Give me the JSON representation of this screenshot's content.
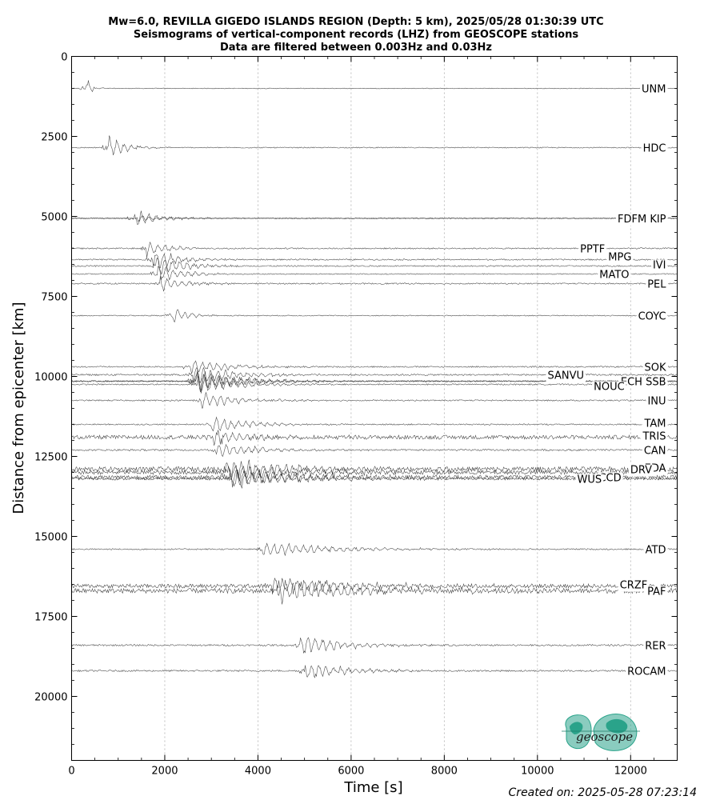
{
  "chart_data": {
    "type": "line",
    "title_lines": [
      "Mw=6.0, REVILLA GIGEDO ISLANDS REGION (Depth: 5 km), 2025/05/28 01:30:39 UTC",
      "Seismograms of vertical-component records (LHZ) from GEOSCOPE stations",
      "Data are filtered between 0.003Hz and 0.03Hz"
    ],
    "xlabel": "Time [s]",
    "ylabel": "Distance from epicenter [km]",
    "xlim": [
      0,
      13000
    ],
    "ylim": [
      22000,
      0
    ],
    "x_ticks": [
      0,
      2000,
      4000,
      6000,
      8000,
      10000,
      12000
    ],
    "y_ticks": [
      0,
      2500,
      5000,
      7500,
      10000,
      12500,
      15000,
      17500,
      20000
    ],
    "x_grid": true,
    "y_grid": false,
    "series": [
      {
        "name": "UNM",
        "distance": 1000,
        "arrival": 320,
        "amp": 14,
        "noise": 0.4,
        "coda": 200,
        "spread": 0
      },
      {
        "name": "HDC",
        "distance": 2850,
        "arrival": 800,
        "amp": 14,
        "noise": 0.6,
        "coda": 700,
        "spread": 0
      },
      {
        "name": "FDFM",
        "distance": 5060,
        "arrival": 1350,
        "amp": 12,
        "noise": 0.6,
        "coda": 900,
        "spread": 0
      },
      {
        "name": "KIP",
        "distance": 5060,
        "arrival": 1400,
        "amp": 5,
        "noise": 0.3,
        "coda": 600,
        "spread": 0
      },
      {
        "name": "PPTF",
        "distance": 6000,
        "arrival": 1600,
        "amp": 10,
        "noise": 0.8,
        "coda": 800,
        "spread": 0
      },
      {
        "name": "MPG",
        "distance": 6350,
        "arrival": 1750,
        "amp": 14,
        "noise": 0.8,
        "coda": 900,
        "spread": 0
      },
      {
        "name": "IVI",
        "distance": 6550,
        "arrival": 1800,
        "amp": 14,
        "noise": 0.8,
        "coda": 1000,
        "spread": 0
      },
      {
        "name": "MATO",
        "distance": 6800,
        "arrival": 1850,
        "amp": 12,
        "noise": 0.6,
        "coda": 900,
        "spread": 0
      },
      {
        "name": "PEL",
        "distance": 7100,
        "arrival": 1900,
        "amp": 10,
        "noise": 0.8,
        "coda": 900,
        "spread": 0
      },
      {
        "name": "COYC",
        "distance": 8100,
        "arrival": 2150,
        "amp": 10,
        "noise": 0.6,
        "coda": 600,
        "spread": 0
      },
      {
        "name": "SOK",
        "distance": 9700,
        "arrival": 2550,
        "amp": 10,
        "noise": 0.8,
        "coda": 1400,
        "spread": 0
      },
      {
        "name": "SANVU",
        "distance": 9950,
        "arrival": 2600,
        "amp": 12,
        "noise": 1.0,
        "coda": 1500,
        "spread": 0
      },
      {
        "name": "ECH",
        "distance": 10150,
        "arrival": 2650,
        "amp": 14,
        "noise": 0.8,
        "coda": 1600,
        "spread": 0
      },
      {
        "name": "SSB",
        "distance": 10150,
        "arrival": 2650,
        "amp": 14,
        "noise": 0.8,
        "coda": 1600,
        "spread": 0
      },
      {
        "name": "NOUC",
        "distance": 10250,
        "arrival": 2700,
        "amp": 12,
        "noise": 0.8,
        "coda": 1500,
        "spread": 0
      },
      {
        "name": "INU",
        "distance": 10750,
        "arrival": 2750,
        "amp": 10,
        "noise": 0.8,
        "coda": 1300,
        "spread": 0
      },
      {
        "name": "TAM",
        "distance": 11500,
        "arrival": 3000,
        "amp": 10,
        "noise": 0.8,
        "coda": 1400,
        "spread": 0
      },
      {
        "name": "TRIS",
        "distance": 11900,
        "arrival": 3050,
        "amp": 10,
        "noise": 2.5,
        "coda": 1500,
        "spread": 0
      },
      {
        "name": "CAN",
        "distance": 12300,
        "arrival": 3100,
        "amp": 10,
        "noise": 1.0,
        "coda": 1500,
        "spread": 0
      },
      {
        "name": "EDA",
        "distance": 12900,
        "arrival": 3300,
        "amp": 12,
        "noise": 3.0,
        "coda": 2500,
        "spread": 0
      },
      {
        "name": "DRV",
        "distance": 13000,
        "arrival": 3350,
        "amp": 12,
        "noise": 2.5,
        "coda": 2500,
        "spread": 0
      },
      {
        "name": "CCD",
        "distance": 13150,
        "arrival": 3400,
        "amp": 12,
        "noise": 2.5,
        "coda": 2500,
        "spread": 0
      },
      {
        "name": "WUS",
        "distance": 13200,
        "arrival": 3450,
        "amp": 12,
        "noise": 1.5,
        "coda": 2300,
        "spread": 0
      },
      {
        "name": "ATD",
        "distance": 15400,
        "arrival": 4100,
        "amp": 10,
        "noise": 0.8,
        "coda": 2500,
        "spread": 0
      },
      {
        "name": "CRZF",
        "distance": 16550,
        "arrival": 4300,
        "amp": 12,
        "noise": 2.5,
        "coda": 2800,
        "spread": 0
      },
      {
        "name": "PAF",
        "distance": 16700,
        "arrival": 4400,
        "amp": 14,
        "noise": 3.0,
        "coda": 3000,
        "spread": 0
      },
      {
        "name": "RER",
        "distance": 18400,
        "arrival": 4900,
        "amp": 12,
        "noise": 1.0,
        "coda": 1700,
        "spread": 0
      },
      {
        "name": "ROCAM",
        "distance": 19200,
        "arrival": 5000,
        "amp": 12,
        "noise": 1.0,
        "coda": 1500,
        "spread": 0
      }
    ],
    "labels": [
      {
        "text": "UNM",
        "x_end": 12760,
        "distance": 1000
      },
      {
        "text": "HDC",
        "x_end": 12760,
        "distance": 2850
      },
      {
        "text": "FDFM KIP",
        "x_end": 12760,
        "distance": 5060
      },
      {
        "text": "PPTF",
        "x_end": 11450,
        "distance": 6000
      },
      {
        "text": "MPG",
        "x_end": 12020,
        "distance": 6250
      },
      {
        "text": "IVI",
        "x_end": 12760,
        "distance": 6500
      },
      {
        "text": "MATO",
        "x_end": 11970,
        "distance": 6800
      },
      {
        "text": "PEL",
        "x_end": 12760,
        "distance": 7100
      },
      {
        "text": "COYC",
        "x_end": 12760,
        "distance": 8100
      },
      {
        "text": "SOK",
        "x_end": 12760,
        "distance": 9700
      },
      {
        "text": "SANVU",
        "x_end": 11000,
        "distance": 9950
      },
      {
        "text": "ECH SSB",
        "x_end": 12760,
        "distance": 10150
      },
      {
        "text": "NOUC",
        "x_end": 11870,
        "distance": 10300
      },
      {
        "text": "INU",
        "x_end": 12760,
        "distance": 10750
      },
      {
        "text": "TAM",
        "x_end": 12760,
        "distance": 11450
      },
      {
        "text": "TRIS",
        "x_end": 12760,
        "distance": 11850
      },
      {
        "text": "CAN",
        "x_end": 12760,
        "distance": 12300
      },
      {
        "text": "EDA",
        "x_end": 12760,
        "distance": 12850
      },
      {
        "text": "DRV",
        "x_end": 12460,
        "distance": 12900
      },
      {
        "text": "CCD",
        "x_end": 11800,
        "distance": 13150
      },
      {
        "text": "WUS",
        "x_end": 11380,
        "distance": 13200
      },
      {
        "text": "ATD",
        "x_end": 12760,
        "distance": 15400
      },
      {
        "text": "CRZF",
        "x_end": 12360,
        "distance": 16500
      },
      {
        "text": "PAF",
        "x_end": 12760,
        "distance": 16700
      },
      {
        "text": "RER",
        "x_end": 12760,
        "distance": 18400
      },
      {
        "text": "ROCAM",
        "x_end": 12760,
        "distance": 19200
      }
    ]
  },
  "footer": "Created on: 2025-05-28 07:23:14",
  "logo": {
    "text": "geoscope",
    "color": "#2aa38a"
  }
}
